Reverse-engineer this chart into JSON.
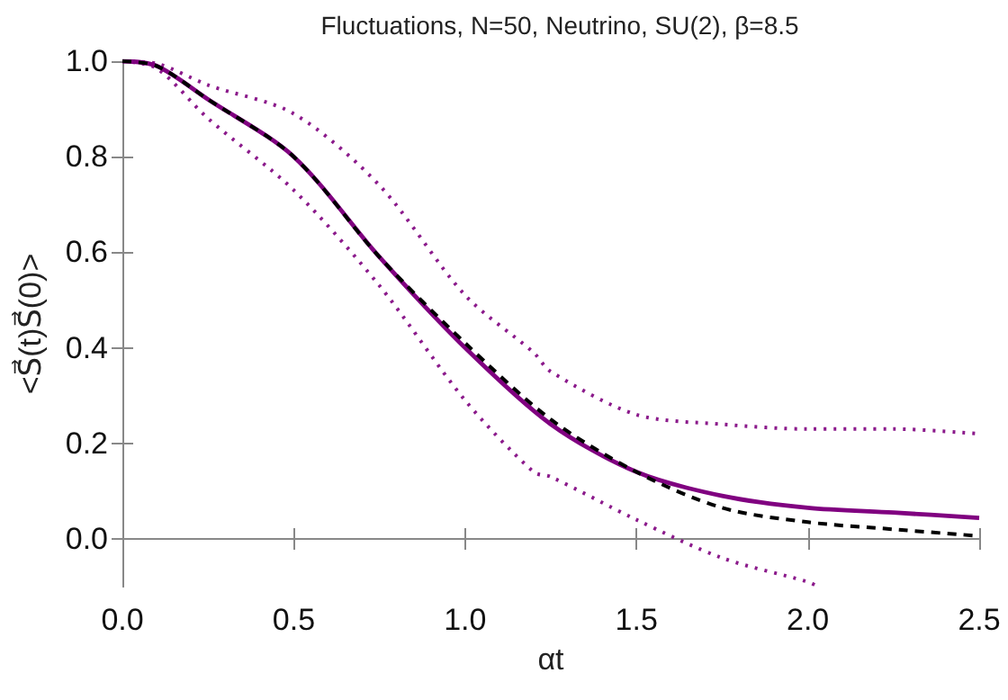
{
  "chart_data": {
    "type": "line",
    "title": "Fluctuations, N=50, Neutrino, SU(2), β=8.5",
    "xlabel": "αt",
    "ylabel": "<S⃗(t)S⃗(0)>",
    "xlim": [
      0,
      2.5
    ],
    "xticks": [
      {
        "value": 0,
        "label": "0.0"
      },
      {
        "value": 0.5,
        "label": "0.5"
      },
      {
        "value": 1,
        "label": "1.0"
      },
      {
        "value": 1.5,
        "label": "1.5"
      },
      {
        "value": 2,
        "label": "2.0"
      },
      {
        "value": 2.5,
        "label": "2.5"
      }
    ],
    "ylim": [
      -0.1,
      1.0
    ],
    "yticks": [
      {
        "value": 0,
        "label": "0.0"
      },
      {
        "value": 0.2,
        "label": "0.2"
      },
      {
        "value": 0.4,
        "label": "0.4"
      },
      {
        "value": 0.6,
        "label": "0.6"
      },
      {
        "value": 0.8,
        "label": "0.8"
      },
      {
        "value": 1,
        "label": "1.0"
      }
    ],
    "marker": "none",
    "series": [
      {
        "color": "#8b1a8b",
        "line_style": "dotted",
        "x": [
          0,
          0.1,
          0.25,
          0.5,
          0.75,
          1.0,
          1.2,
          1.25,
          1.5,
          1.75,
          2.0,
          2.25,
          2.5
        ],
        "values": [
          1.0,
          0.995,
          0.95,
          0.89,
          0.74,
          0.51,
          0.39,
          0.35,
          0.26,
          0.24,
          0.23,
          0.23,
          0.22
        ]
      },
      {
        "color": "#8b1a8b",
        "line_style": "dotted",
        "x": [
          0,
          0.1,
          0.25,
          0.5,
          0.75,
          1.0,
          1.2,
          1.25,
          1.5,
          1.75,
          2.0,
          2.03
        ],
        "values": [
          1.0,
          0.985,
          0.88,
          0.73,
          0.53,
          0.29,
          0.14,
          0.13,
          0.04,
          -0.04,
          -0.09,
          -0.1
        ]
      },
      {
        "color": "#800080",
        "line_style": "solid",
        "x": [
          0,
          0.1,
          0.25,
          0.5,
          0.75,
          1.0,
          1.25,
          1.5,
          1.75,
          2.0,
          2.25,
          2.5
        ],
        "values": [
          1.0,
          0.99,
          0.92,
          0.8,
          0.59,
          0.4,
          0.24,
          0.14,
          0.09,
          0.065,
          0.055,
          0.044
        ]
      },
      {
        "color": "#000000",
        "line_style": "dashed",
        "x": [
          0,
          0.1,
          0.25,
          0.5,
          0.75,
          1.0,
          1.25,
          1.5,
          1.75,
          2.0,
          2.25,
          2.5
        ],
        "values": [
          1.0,
          0.99,
          0.92,
          0.8,
          0.59,
          0.41,
          0.25,
          0.14,
          0.065,
          0.035,
          0.02,
          0.006
        ]
      }
    ]
  }
}
